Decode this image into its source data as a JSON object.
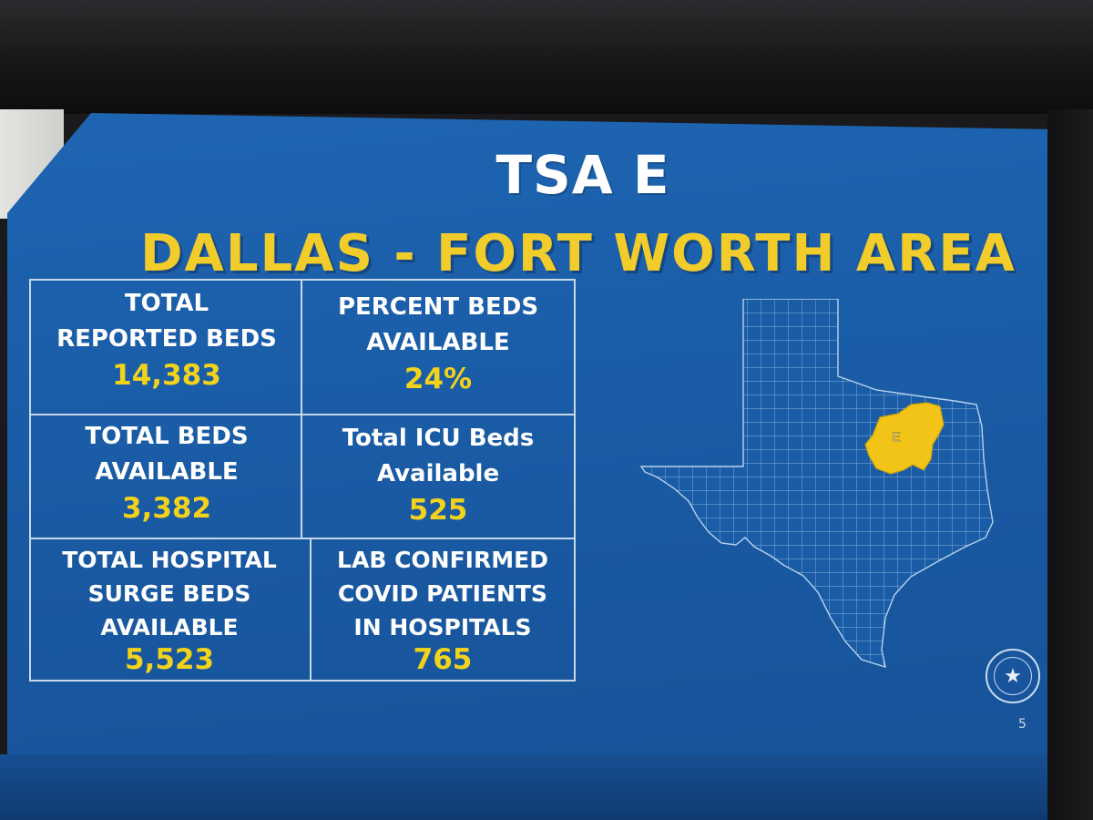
{
  "slide": {
    "title": "TSA E",
    "subtitle": "DALLAS - FORT WORTH AREA",
    "page_number": "5",
    "colors": {
      "background": "#1a5ca6",
      "title": "#ffffff",
      "subtitle": "#f2cc2a",
      "value": "#f2d21b",
      "highlight_region": "#f2c418"
    }
  },
  "stats": [
    {
      "label_lines": [
        "TOTAL",
        "REPORTED BEDS"
      ],
      "value": "14,383"
    },
    {
      "label_lines": [
        "PERCENT BEDS",
        "AVAILABLE"
      ],
      "value": "24%"
    },
    {
      "label_lines": [
        "TOTAL BEDS",
        "AVAILABLE"
      ],
      "value": "3,382"
    },
    {
      "label_lines": [
        "Total ICU Beds",
        "Available"
      ],
      "value": "525"
    },
    {
      "label_lines": [
        "TOTAL HOSPITAL",
        "SURGE BEDS",
        "AVAILABLE"
      ],
      "value": "5,523"
    },
    {
      "label_lines": [
        "LAB CONFIRMED",
        "COVID PATIENTS",
        "IN HOSPITALS"
      ],
      "value": "765"
    }
  ],
  "map": {
    "region_label": "E",
    "state_icon": "texas-map-icon",
    "seal_icon": "texas-governor-seal-icon"
  }
}
